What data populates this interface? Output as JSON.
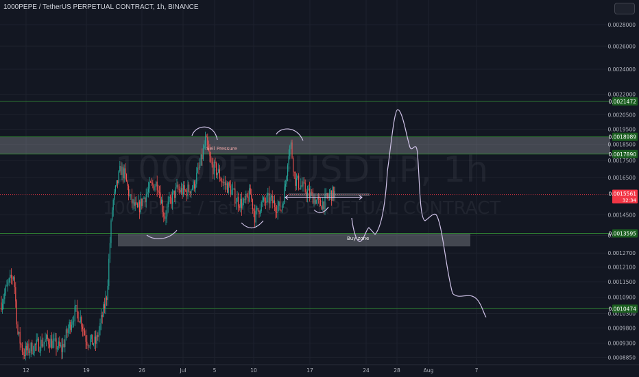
{
  "header": {
    "title": "1000PEPE / TetherUS PERPETUAL CONTRACT, 1h, BINANCE"
  },
  "watermark": {
    "symbol": "1000PEPEUSDT.P, 1h",
    "description": "1000PEPE / TetherUS PERPETUAL CONTRACT"
  },
  "colors": {
    "background": "#131722",
    "grid": "#1e222d",
    "up_candle": "#26a69a",
    "down_candle": "#ef5350",
    "level_line": "#2e7d32",
    "level_label_bg": "#1b5e20",
    "price_line": "#f23645",
    "zone_fill": "#b2b5be",
    "drawing": "#d1c4e9"
  },
  "chart_data": {
    "type": "candlestick",
    "symbol": "1000PEPEUSDT.P",
    "timeframe": "1h",
    "exchange": "BINANCE",
    "x_ticks": [
      "12",
      "19",
      "26",
      "Jul",
      "5",
      "10",
      "17",
      "24",
      "28",
      "Aug",
      "7"
    ],
    "y_ticks": [
      "0.0028000",
      "0.0026000",
      "0.0024000",
      "0.0022000",
      "0.0020500",
      "0.0019500",
      "0.0018500",
      "0.0017500",
      "0.0016500",
      "0.0014500",
      "0.0013500",
      "0.0012700",
      "0.0012100",
      "0.0011500",
      "0.0010900",
      "0.0010300",
      "0.0009800",
      "0.0009300",
      "0.0008850"
    ],
    "y_axis_type": "log",
    "ylim": [
      0.000863,
      0.00305
    ],
    "horizontal_levels": [
      {
        "label": "0.0021472",
        "value": 0.0021472
      },
      {
        "label": "0.0018989",
        "value": 0.0018989
      },
      {
        "label": "0.0017890",
        "value": 0.001789
      },
      {
        "label": "0.0013595",
        "value": 0.0013595
      },
      {
        "label": "0.0010474",
        "value": 0.0010474
      }
    ],
    "current_price": {
      "label": "0.0015561",
      "value": 0.0015561,
      "countdown": "32:34"
    },
    "zones": [
      {
        "name": "Sell Pressure",
        "low": 0.001789,
        "high": 0.0018989
      },
      {
        "name": "Buy zone",
        "low": 0.0013,
        "high": 0.001359
      }
    ],
    "annotations": [
      "Sell Pressure",
      "Buy zone"
    ],
    "grid": true
  }
}
